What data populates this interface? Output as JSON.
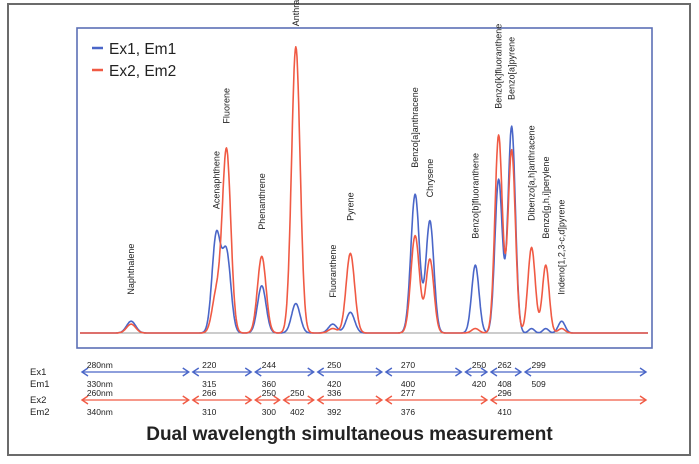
{
  "caption": "Dual wavelength simultaneous measurement",
  "colors": {
    "ex1": "#4a66c8",
    "ex2": "#f05a44",
    "plot_border": "#5b6fb6",
    "frame": "#6b6b6b",
    "text": "#222222"
  },
  "chart_data": {
    "type": "line",
    "title": "",
    "xlabel": "",
    "ylabel": "",
    "grid": false,
    "legend_position": "top-left",
    "xlim": [
      0,
      100
    ],
    "ylim": [
      0,
      100
    ],
    "series": [
      {
        "name": "Ex1, Em1",
        "color": "#4a66c8",
        "peaks": [
          {
            "x": 9,
            "height": 4,
            "width": 0.8
          },
          {
            "x": 24,
            "height": 33,
            "width": 0.75
          },
          {
            "x": 25.8,
            "height": 27,
            "width": 0.75
          },
          {
            "x": 32,
            "height": 16,
            "width": 0.75
          },
          {
            "x": 38,
            "height": 10,
            "width": 0.75
          },
          {
            "x": 44.5,
            "height": 3,
            "width": 0.75
          },
          {
            "x": 47.6,
            "height": 7,
            "width": 0.75
          },
          {
            "x": 59,
            "height": 47,
            "width": 0.75
          },
          {
            "x": 61.6,
            "height": 38,
            "width": 0.7
          },
          {
            "x": 69.6,
            "height": 23,
            "width": 0.65
          },
          {
            "x": 73.7,
            "height": 52,
            "width": 0.65
          },
          {
            "x": 76,
            "height": 70,
            "width": 0.65
          },
          {
            "x": 79.5,
            "height": 1.5,
            "width": 0.5
          },
          {
            "x": 82,
            "height": 1.5,
            "width": 0.5
          },
          {
            "x": 84.8,
            "height": 4,
            "width": 0.6
          }
        ]
      },
      {
        "name": "Ex2, Em2",
        "color": "#f05a44",
        "peaks": [
          {
            "x": 9,
            "height": 3,
            "width": 0.8
          },
          {
            "x": 24,
            "height": 13,
            "width": 0.75
          },
          {
            "x": 25.8,
            "height": 62,
            "width": 0.75
          },
          {
            "x": 32,
            "height": 26,
            "width": 0.75
          },
          {
            "x": 38,
            "height": 97,
            "width": 0.75
          },
          {
            "x": 44.5,
            "height": 1.5,
            "width": 0.75
          },
          {
            "x": 47.6,
            "height": 27,
            "width": 0.75
          },
          {
            "x": 59,
            "height": 33,
            "width": 0.75
          },
          {
            "x": 61.6,
            "height": 25,
            "width": 0.7
          },
          {
            "x": 69.6,
            "height": 1.5,
            "width": 0.65
          },
          {
            "x": 73.7,
            "height": 67,
            "width": 0.65
          },
          {
            "x": 76,
            "height": 62,
            "width": 0.65
          },
          {
            "x": 79.5,
            "height": 29,
            "width": 0.65
          },
          {
            "x": 82,
            "height": 23,
            "width": 0.6
          },
          {
            "x": 84.8,
            "height": 1.5,
            "width": 0.6
          }
        ]
      }
    ],
    "annotations": [
      {
        "label": "Naphthalene",
        "x": 9,
        "y": 13
      },
      {
        "label": "Acenaphthene",
        "x": 24,
        "y": 42
      },
      {
        "label": "Fluorene",
        "x": 25.8,
        "y": 71
      },
      {
        "label": "Phenanthrene",
        "x": 32,
        "y": 35
      },
      {
        "label": "Anthracene",
        "x": 38,
        "y": 104
      },
      {
        "label": "Fluoranthene",
        "x": 44.5,
        "y": 12
      },
      {
        "label": "Pyrene",
        "x": 47.6,
        "y": 38
      },
      {
        "label": "Benzo[a]anthracene",
        "x": 59,
        "y": 56
      },
      {
        "label": "Chrysene",
        "x": 61.6,
        "y": 46
      },
      {
        "label": "Benzo[b]fluoranthene",
        "x": 69.6,
        "y": 32
      },
      {
        "label": "Benzo[k]fluoranthene",
        "x": 73.7,
        "y": 76
      },
      {
        "label": "Benzo[a]pyrene",
        "x": 76,
        "y": 79
      },
      {
        "label": "Dibenzo[a,h]anthracene",
        "x": 79.5,
        "y": 38
      },
      {
        "label": "Benzo[g,h,i]perylene",
        "x": 82,
        "y": 32
      },
      {
        "label": "Indeno[1,2,3-c,d]pyrene",
        "x": 84.8,
        "y": 13
      }
    ]
  },
  "wavelength_table": {
    "rows": [
      {
        "key": "Ex1",
        "label": "Ex1",
        "color": "#4a66c8",
        "segments": [
          [
            0,
            19.5
          ],
          [
            19.5,
            30.5
          ],
          [
            30.5,
            41.5
          ],
          [
            41.5,
            53.5
          ],
          [
            53.5,
            67.5
          ],
          [
            67.5,
            72
          ],
          [
            72,
            78
          ],
          [
            78,
            100
          ]
        ],
        "values": [
          {
            "x": 1.2,
            "text": "280nm"
          },
          {
            "x": 21.5,
            "text": "220"
          },
          {
            "x": 32,
            "text": "244"
          },
          {
            "x": 43.5,
            "text": "250"
          },
          {
            "x": 56.5,
            "text": "270"
          },
          {
            "x": 69,
            "text": "250"
          },
          {
            "x": 73.5,
            "text": "262"
          },
          {
            "x": 79.5,
            "text": "299"
          }
        ]
      },
      {
        "key": "Em1",
        "label": "Em1",
        "values": [
          {
            "x": 1.2,
            "text": "330nm"
          },
          {
            "x": 21.5,
            "text": "315"
          },
          {
            "x": 32,
            "text": "360"
          },
          {
            "x": 43.5,
            "text": "420"
          },
          {
            "x": 56.5,
            "text": "400"
          },
          {
            "x": 69,
            "text": "420"
          },
          {
            "x": 73.5,
            "text": "408"
          },
          {
            "x": 79.5,
            "text": "509"
          }
        ]
      },
      {
        "key": "Ex2",
        "label": "Ex2",
        "color": "#f05a44",
        "segments": [
          [
            0,
            19.5
          ],
          [
            19.5,
            30.5
          ],
          [
            30.5,
            35.5
          ],
          [
            35.5,
            41.5
          ],
          [
            41.5,
            53.5
          ],
          [
            53.5,
            72
          ],
          [
            72,
            100
          ]
        ],
        "values": [
          {
            "x": 1.2,
            "text": "260nm"
          },
          {
            "x": 21.5,
            "text": "266"
          },
          {
            "x": 32,
            "text": "250"
          },
          {
            "x": 37,
            "text": "250"
          },
          {
            "x": 43.5,
            "text": "336"
          },
          {
            "x": 56.5,
            "text": "277"
          },
          {
            "x": 73.5,
            "text": "296"
          }
        ]
      },
      {
        "key": "Em2",
        "label": "Em2",
        "values": [
          {
            "x": 1.2,
            "text": "340nm"
          },
          {
            "x": 21.5,
            "text": "310"
          },
          {
            "x": 32,
            "text": "300"
          },
          {
            "x": 37,
            "text": "402"
          },
          {
            "x": 43.5,
            "text": "392"
          },
          {
            "x": 56.5,
            "text": "376"
          },
          {
            "x": 73.5,
            "text": "410"
          }
        ]
      }
    ]
  }
}
